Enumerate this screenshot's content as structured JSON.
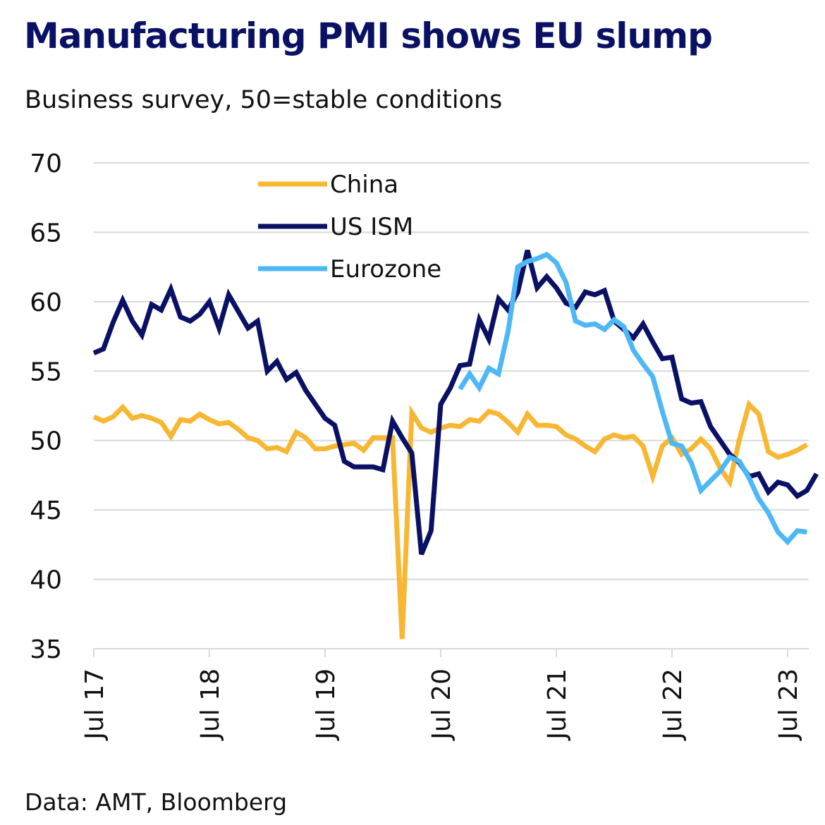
{
  "title": "Manufacturing PMI shows EU slump",
  "subtitle": "Business survey, 50=stable conditions",
  "source": "Data: AMT, Bloomberg",
  "colors": {
    "China": "#f7b733",
    "US ISM": "#0a1165",
    "Eurozone": "#4db8f5",
    "grid": "#d9d9d9",
    "title": "#0a1165"
  },
  "chart_data": {
    "type": "line",
    "title": "Manufacturing PMI shows EU slump",
    "subtitle": "Business survey, 50=stable conditions",
    "ylim": [
      35,
      70
    ],
    "yticks": [
      35,
      40,
      45,
      50,
      55,
      60,
      65,
      70
    ],
    "xlim": [
      "2017-07",
      "2023-10"
    ],
    "xticks": [
      "2017-07",
      "2018-07",
      "2019-07",
      "2020-07",
      "2021-07",
      "2022-07",
      "2023-07"
    ],
    "xtick_labels": [
      "Jul 17",
      "Jul 18",
      "Jul 19",
      "Jul 20",
      "Jul 21",
      "Jul 22",
      "Jul 23"
    ],
    "grid": "horizontal",
    "legend_position": "top-center",
    "series": [
      {
        "name": "China",
        "color": "#f7b733",
        "points": [
          [
            "2017-07",
            51.7
          ],
          [
            "2017-08",
            51.4
          ],
          [
            "2017-09",
            51.7
          ],
          [
            "2017-10",
            52.4
          ],
          [
            "2017-11",
            51.6
          ],
          [
            "2017-12",
            51.8
          ],
          [
            "2018-01",
            51.6
          ],
          [
            "2018-02",
            51.3
          ],
          [
            "2018-03",
            50.3
          ],
          [
            "2018-04",
            51.5
          ],
          [
            "2018-05",
            51.4
          ],
          [
            "2018-06",
            51.9
          ],
          [
            "2018-07",
            51.5
          ],
          [
            "2018-08",
            51.2
          ],
          [
            "2018-09",
            51.3
          ],
          [
            "2018-10",
            50.8
          ],
          [
            "2018-11",
            50.2
          ],
          [
            "2018-12",
            50.0
          ],
          [
            "2019-01",
            49.4
          ],
          [
            "2019-02",
            49.5
          ],
          [
            "2019-03",
            49.2
          ],
          [
            "2019-04",
            50.6
          ],
          [
            "2019-05",
            50.2
          ],
          [
            "2019-06",
            49.4
          ],
          [
            "2019-07",
            49.4
          ],
          [
            "2019-08",
            49.6
          ],
          [
            "2019-09",
            49.7
          ],
          [
            "2019-10",
            49.8
          ],
          [
            "2019-11",
            49.3
          ],
          [
            "2019-12",
            50.2
          ],
          [
            "2020-01",
            50.2
          ],
          [
            "2020-02",
            50.2
          ],
          [
            "2020-03",
            35.7
          ],
          [
            "2020-04",
            52.0
          ],
          [
            "2020-05",
            50.9
          ],
          [
            "2020-06",
            50.6
          ],
          [
            "2020-07",
            50.9
          ],
          [
            "2020-08",
            51.1
          ],
          [
            "2020-09",
            51.0
          ],
          [
            "2020-10",
            51.5
          ],
          [
            "2020-11",
            51.4
          ],
          [
            "2020-12",
            52.1
          ],
          [
            "2021-01",
            51.9
          ],
          [
            "2021-02",
            51.3
          ],
          [
            "2021-03",
            50.6
          ],
          [
            "2021-04",
            51.9
          ],
          [
            "2021-05",
            51.1
          ],
          [
            "2021-06",
            51.1
          ],
          [
            "2021-07",
            51.0
          ],
          [
            "2021-08",
            50.4
          ],
          [
            "2021-09",
            50.1
          ],
          [
            "2021-10",
            49.6
          ],
          [
            "2021-11",
            49.2
          ],
          [
            "2021-12",
            50.1
          ],
          [
            "2022-01",
            50.4
          ],
          [
            "2022-02",
            50.2
          ],
          [
            "2022-03",
            50.3
          ],
          [
            "2022-04",
            49.6
          ],
          [
            "2022-05",
            47.4
          ],
          [
            "2022-06",
            49.6
          ],
          [
            "2022-07",
            50.2
          ],
          [
            "2022-08",
            49.0
          ],
          [
            "2022-09",
            49.4
          ],
          [
            "2022-10",
            50.1
          ],
          [
            "2022-11",
            49.4
          ],
          [
            "2022-12",
            48.0
          ],
          [
            "2023-01",
            47.0
          ],
          [
            "2023-02",
            50.1
          ],
          [
            "2023-03",
            52.6
          ],
          [
            "2023-04",
            51.9
          ],
          [
            "2023-05",
            49.2
          ],
          [
            "2023-06",
            48.8
          ],
          [
            "2023-07",
            49.0
          ],
          [
            "2023-08",
            49.3
          ],
          [
            "2023-09",
            49.7
          ]
        ]
      },
      {
        "name": "US ISM",
        "color": "#0a1165",
        "points": [
          [
            "2017-07",
            56.3
          ],
          [
            "2017-08",
            56.6
          ],
          [
            "2017-09",
            58.5
          ],
          [
            "2017-10",
            60.1
          ],
          [
            "2017-11",
            58.6
          ],
          [
            "2017-12",
            57.6
          ],
          [
            "2018-01",
            59.8
          ],
          [
            "2018-02",
            59.4
          ],
          [
            "2018-03",
            60.9
          ],
          [
            "2018-04",
            58.9
          ],
          [
            "2018-05",
            58.6
          ],
          [
            "2018-06",
            59.1
          ],
          [
            "2018-07",
            60.0
          ],
          [
            "2018-08",
            58.1
          ],
          [
            "2018-09",
            60.5
          ],
          [
            "2018-10",
            59.3
          ],
          [
            "2018-11",
            58.1
          ],
          [
            "2018-12",
            58.6
          ],
          [
            "2019-01",
            55.0
          ],
          [
            "2019-02",
            55.7
          ],
          [
            "2019-03",
            54.4
          ],
          [
            "2019-04",
            54.9
          ],
          [
            "2019-05",
            53.6
          ],
          [
            "2019-06",
            52.6
          ],
          [
            "2019-07",
            51.6
          ],
          [
            "2019-08",
            51.1
          ],
          [
            "2019-09",
            48.5
          ],
          [
            "2019-10",
            48.1
          ],
          [
            "2019-11",
            48.1
          ],
          [
            "2019-12",
            48.1
          ],
          [
            "2020-01",
            47.9
          ],
          [
            "2020-02",
            51.4
          ],
          [
            "2020-03",
            50.2
          ],
          [
            "2020-04",
            49.1
          ],
          [
            "2020-05",
            41.8
          ],
          [
            "2020-06",
            43.5
          ],
          [
            "2020-07",
            52.6
          ],
          [
            "2020-08",
            53.8
          ],
          [
            "2020-09",
            55.4
          ],
          [
            "2020-10",
            55.5
          ],
          [
            "2020-11",
            58.7
          ],
          [
            "2020-12",
            57.3
          ],
          [
            "2021-01",
            60.2
          ],
          [
            "2021-02",
            59.4
          ],
          [
            "2021-03",
            60.7
          ],
          [
            "2021-04",
            63.7
          ],
          [
            "2021-05",
            61.0
          ],
          [
            "2021-06",
            61.8
          ],
          [
            "2021-07",
            61.0
          ],
          [
            "2021-08",
            59.9
          ],
          [
            "2021-09",
            59.6
          ],
          [
            "2021-10",
            60.7
          ],
          [
            "2021-11",
            60.5
          ],
          [
            "2021-12",
            60.8
          ],
          [
            "2022-01",
            58.6
          ],
          [
            "2022-02",
            58.0
          ],
          [
            "2022-03",
            57.4
          ],
          [
            "2022-04",
            58.4
          ],
          [
            "2022-05",
            57.1
          ],
          [
            "2022-06",
            55.9
          ],
          [
            "2022-07",
            56.0
          ],
          [
            "2022-08",
            53.0
          ],
          [
            "2022-09",
            52.7
          ],
          [
            "2022-10",
            52.8
          ],
          [
            "2022-11",
            51.0
          ],
          [
            "2022-12",
            50.0
          ],
          [
            "2023-01",
            49.0
          ],
          [
            "2023-02",
            48.4
          ],
          [
            "2023-03",
            47.4
          ],
          [
            "2023-04",
            47.6
          ],
          [
            "2023-05",
            46.3
          ],
          [
            "2023-06",
            47.0
          ],
          [
            "2023-07",
            46.8
          ],
          [
            "2023-08",
            46.0
          ],
          [
            "2023-09",
            46.4
          ],
          [
            "2023-10",
            47.6
          ]
        ]
      },
      {
        "name": "Eurozone",
        "color": "#4db8f5",
        "points": [
          [
            "2020-09",
            53.7
          ],
          [
            "2020-10",
            54.8
          ],
          [
            "2020-11",
            53.8
          ],
          [
            "2020-12",
            55.2
          ],
          [
            "2021-01",
            54.8
          ],
          [
            "2021-02",
            57.9
          ],
          [
            "2021-03",
            62.5
          ],
          [
            "2021-04",
            62.9
          ],
          [
            "2021-05",
            63.1
          ],
          [
            "2021-06",
            63.4
          ],
          [
            "2021-07",
            62.8
          ],
          [
            "2021-08",
            61.4
          ],
          [
            "2021-09",
            58.6
          ],
          [
            "2021-10",
            58.3
          ],
          [
            "2021-11",
            58.4
          ],
          [
            "2021-12",
            58.0
          ],
          [
            "2022-01",
            58.7
          ],
          [
            "2022-02",
            58.2
          ],
          [
            "2022-03",
            56.5
          ],
          [
            "2022-04",
            55.5
          ],
          [
            "2022-05",
            54.6
          ],
          [
            "2022-06",
            52.1
          ],
          [
            "2022-07",
            49.8
          ],
          [
            "2022-08",
            49.6
          ],
          [
            "2022-09",
            48.4
          ],
          [
            "2022-10",
            46.4
          ],
          [
            "2022-11",
            47.1
          ],
          [
            "2022-12",
            47.8
          ],
          [
            "2023-01",
            48.8
          ],
          [
            "2023-02",
            48.5
          ],
          [
            "2023-03",
            47.3
          ],
          [
            "2023-04",
            45.8
          ],
          [
            "2023-05",
            44.8
          ],
          [
            "2023-06",
            43.4
          ],
          [
            "2023-07",
            42.7
          ],
          [
            "2023-08",
            43.5
          ],
          [
            "2023-09",
            43.4
          ]
        ]
      }
    ]
  }
}
